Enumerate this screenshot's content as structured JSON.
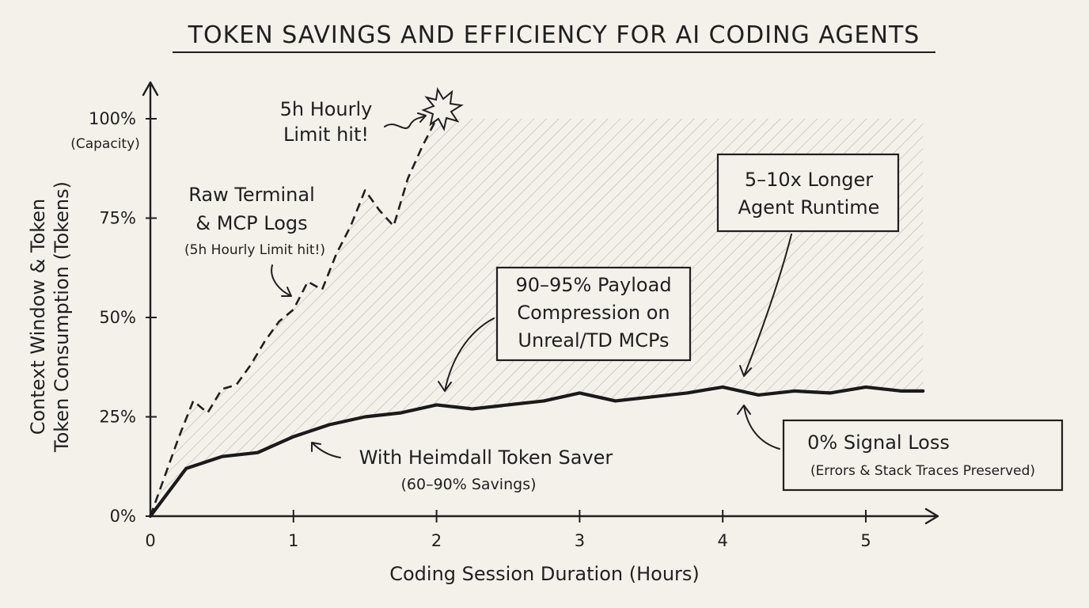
{
  "chart_data": {
    "type": "line",
    "title": "TOKEN SAVINGS AND EFFICIENCY FOR AI CODING AGENTS",
    "xlabel": "Coding Session Duration (Hours)",
    "ylabel_lines": [
      "Context Window & Token",
      "Token Consumption (Tokens)"
    ],
    "x_ticks": [
      "0",
      "1",
      "2",
      "3",
      "4",
      "5"
    ],
    "y_ticks": [
      "0%",
      "25%",
      "50%",
      "75%",
      "100%"
    ],
    "y_tick_note": "(Capacity)",
    "xlim": [
      0,
      5.5
    ],
    "ylim": [
      0,
      105
    ],
    "grid": false,
    "series": [
      {
        "name": "Raw Terminal & MCP Logs",
        "style": "dashed",
        "x": [
          0,
          0.1,
          0.2,
          0.3,
          0.4,
          0.5,
          0.6,
          0.7,
          0.8,
          0.9,
          1.0,
          1.1,
          1.2,
          1.3,
          1.4,
          1.5,
          1.6,
          1.7,
          1.8,
          1.9,
          2.0
        ],
        "y": [
          0,
          10,
          20,
          29,
          26,
          32,
          33,
          38,
          44,
          49,
          52,
          59,
          57,
          66,
          73,
          82,
          77,
          73,
          85,
          93,
          100
        ]
      },
      {
        "name": "With Heimdall Token Saver",
        "style": "solid",
        "x": [
          0,
          0.25,
          0.5,
          0.75,
          1.0,
          1.25,
          1.5,
          1.75,
          2.0,
          2.25,
          2.5,
          2.75,
          3.0,
          3.25,
          3.5,
          3.75,
          4.0,
          4.25,
          4.5,
          4.75,
          5.0,
          5.25,
          5.4
        ],
        "y": [
          0,
          12,
          15,
          16,
          20,
          23,
          25,
          26,
          28,
          27,
          28,
          29,
          31,
          29,
          30,
          31,
          32.5,
          30.5,
          31.5,
          31,
          32.5,
          31.5,
          31.5
        ]
      }
    ],
    "annotations": {
      "limit_hit": [
        "5h Hourly",
        "Limit hit!"
      ],
      "raw_logs": [
        "Raw Terminal",
        "& MCP Logs"
      ],
      "raw_logs_note": "(5h Hourly Limit hit!)",
      "heimdall": "With Heimdall Token Saver",
      "heimdall_note": "(60–90% Savings)",
      "compression": [
        "90–95% Payload",
        "Compression on",
        "Unreal/TD MCPs"
      ],
      "runtime": [
        "5–10x Longer",
        "Agent Runtime"
      ],
      "signal_loss": "0% Signal Loss",
      "signal_loss_note": "(Errors & Stack Traces Preserved)"
    }
  }
}
